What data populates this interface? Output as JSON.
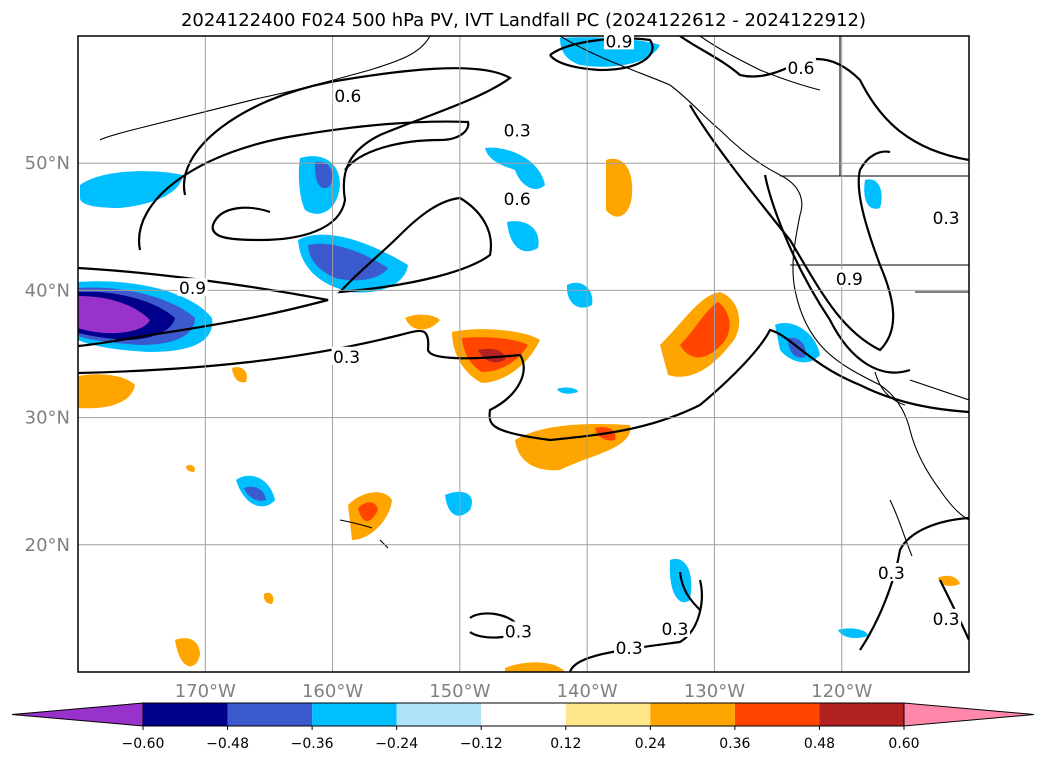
{
  "chart_data": {
    "type": "heatmap",
    "title": "2024122400 F024 500 hPa PV, IVT Landfall PC (2024122612 - 2024122912)",
    "projection": "plate-carree",
    "lon_range": [
      -180,
      -110
    ],
    "lat_range": [
      10,
      60
    ],
    "lon_ticks": [
      {
        "value": -170,
        "label": "170°W"
      },
      {
        "value": -160,
        "label": "160°W"
      },
      {
        "value": -150,
        "label": "150°W"
      },
      {
        "value": -140,
        "label": "140°W"
      },
      {
        "value": -130,
        "label": "130°W"
      },
      {
        "value": -120,
        "label": "120°W"
      }
    ],
    "lat_ticks": [
      {
        "value": 50,
        "label": "50°N"
      },
      {
        "value": 40,
        "label": "40°N"
      },
      {
        "value": 30,
        "label": "30°N"
      },
      {
        "value": 20,
        "label": "20°N"
      }
    ],
    "grid": true,
    "colorbar": {
      "location": "bottom",
      "extend": "both",
      "levels": [
        -0.6,
        -0.48,
        -0.36,
        -0.24,
        -0.12,
        0.12,
        0.24,
        0.36,
        0.48,
        0.6
      ],
      "tick_labels": [
        "−0.60",
        "−0.48",
        "−0.36",
        "−0.24",
        "−0.12",
        "0.12",
        "0.24",
        "0.36",
        "0.48",
        "0.60"
      ],
      "colors": [
        "#9932cc",
        "#00008b",
        "#3a5acd",
        "#00bfff",
        "#aee3fa",
        "#ffffff",
        "#ffe68a",
        "#ffa500",
        "#ff4500",
        "#b22222",
        "#ff88aa"
      ]
    },
    "contour_levels": [
      0.3,
      0.6,
      0.9
    ],
    "contour_labels": [
      {
        "text": "0.6",
        "lon": -158.8,
        "lat": 55.2
      },
      {
        "text": "0.3",
        "lon": -145.5,
        "lat": 52.5
      },
      {
        "text": "0.6",
        "lon": -145.5,
        "lat": 47.1
      },
      {
        "text": "0.9",
        "lon": -171.0,
        "lat": 40.1
      },
      {
        "text": "0.3",
        "lon": -158.9,
        "lat": 34.7
      },
      {
        "text": "0.9",
        "lon": -137.5,
        "lat": 59.5
      },
      {
        "text": "0.6",
        "lon": -123.2,
        "lat": 57.4
      },
      {
        "text": "0.9",
        "lon": -119.4,
        "lat": 40.8
      },
      {
        "text": "0.3",
        "lon": -111.8,
        "lat": 45.6
      },
      {
        "text": "0.3",
        "lon": -116.1,
        "lat": 17.7
      },
      {
        "text": "0.3",
        "lon": -111.8,
        "lat": 14.1
      },
      {
        "text": "0.3",
        "lon": -145.4,
        "lat": 13.1
      },
      {
        "text": "0.3",
        "lon": -133.1,
        "lat": 13.3
      },
      {
        "text": "0.3",
        "lon": -136.7,
        "lat": 11.8
      }
    ]
  }
}
